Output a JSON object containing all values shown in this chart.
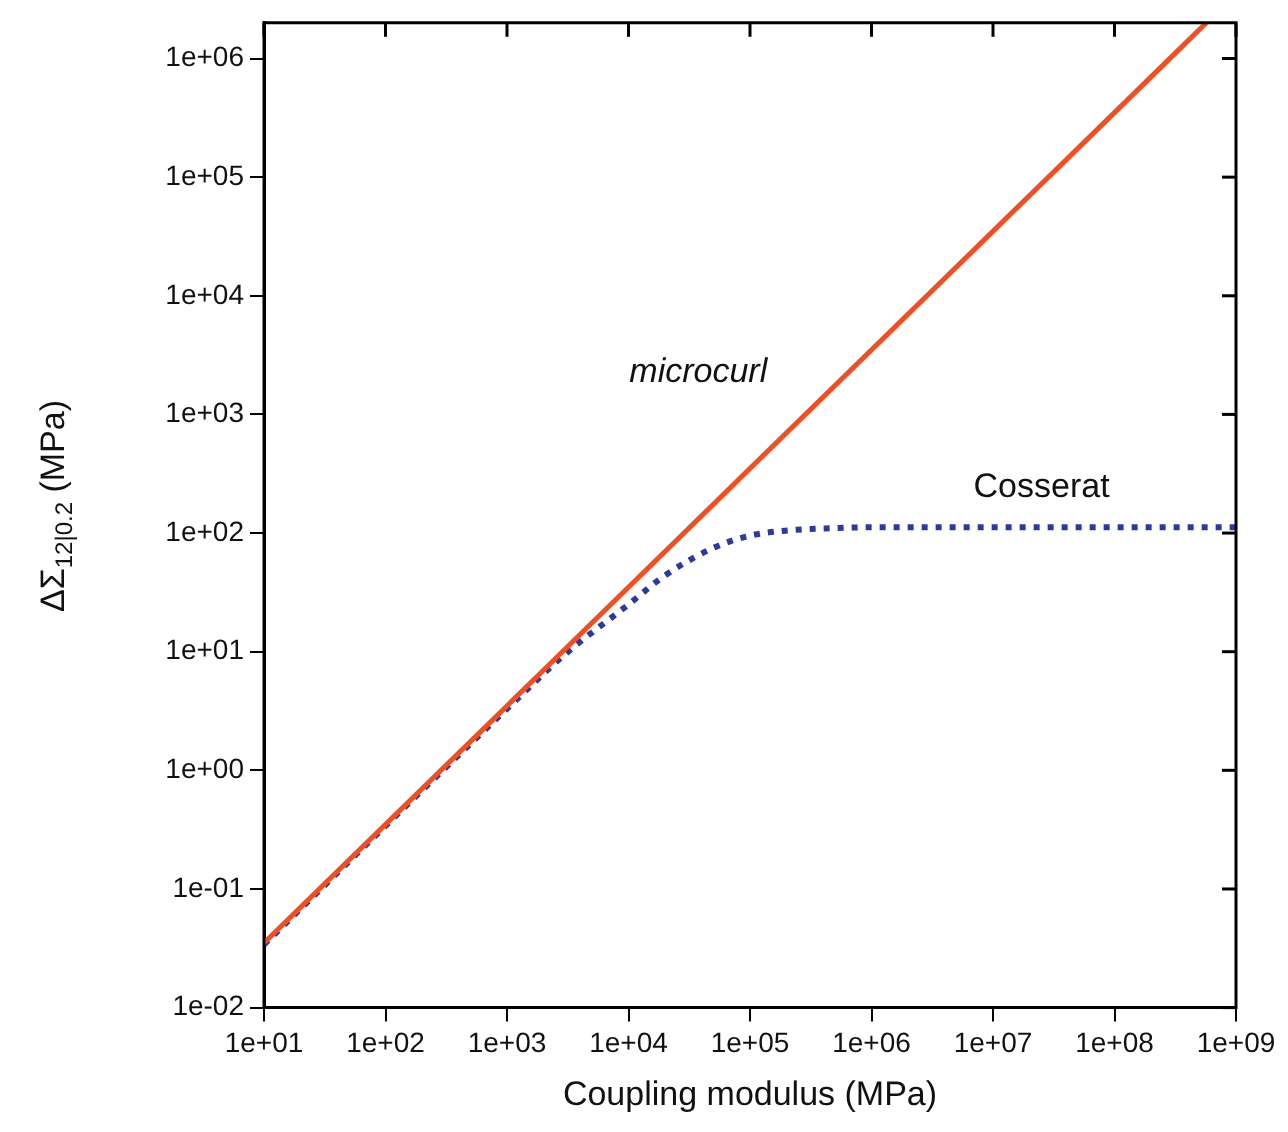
{
  "chart_data": {
    "type": "line",
    "xlabel": "Coupling modulus (MPa)",
    "ylabel": "ΔΣ$_{12|0.2}$ (MPa)",
    "log": "xy",
    "grid": false,
    "legend": false,
    "marker": "none",
    "xlim": [
      10,
      1000000000
    ],
    "xticks": [
      {
        "value": 10,
        "label": "1e+01"
      },
      {
        "value": 100,
        "label": "1e+02"
      },
      {
        "value": 1000,
        "label": "1e+03"
      },
      {
        "value": 10000,
        "label": "1e+04"
      },
      {
        "value": 100000,
        "label": "1e+05"
      },
      {
        "value": 1000000,
        "label": "1e+06"
      },
      {
        "value": 10000000,
        "label": "1e+07"
      },
      {
        "value": 100000000,
        "label": "1e+08"
      },
      {
        "value": 1000000000,
        "label": "1e+09"
      }
    ],
    "ylim": [
      0.01,
      2000000
    ],
    "yticks": [
      {
        "value": 0.01,
        "label": "1e-02"
      },
      {
        "value": 0.1,
        "label": "1e-01"
      },
      {
        "value": 1,
        "label": "1e+00"
      },
      {
        "value": 10,
        "label": "1e+01"
      },
      {
        "value": 100,
        "label": "1e+02"
      },
      {
        "value": 1000,
        "label": "1e+03"
      },
      {
        "value": 10000,
        "label": "1e+04"
      },
      {
        "value": 100000,
        "label": "1e+05"
      },
      {
        "value": 1000000,
        "label": "1e+06"
      }
    ],
    "series": [
      {
        "name": "microcurl",
        "color": "#f04e23",
        "line_style": "solid",
        "x": [
          10,
          100000000,
          570000000
        ],
        "values": [
          0.035,
          350000,
          2000000
        ]
      },
      {
        "name": "Cosserat",
        "color": "#2b3a9c",
        "line_style": "dotted",
        "x": [
          10,
          100,
          1000,
          3000,
          10000,
          20000,
          50000,
          100000,
          200000,
          500000,
          1000000,
          10000000,
          100000000,
          1000000000
        ],
        "values": [
          0.034,
          0.34,
          3.3,
          9.5,
          25,
          44,
          75,
          95,
          105,
          110,
          112,
          112,
          112,
          112
        ]
      }
    ]
  }
}
